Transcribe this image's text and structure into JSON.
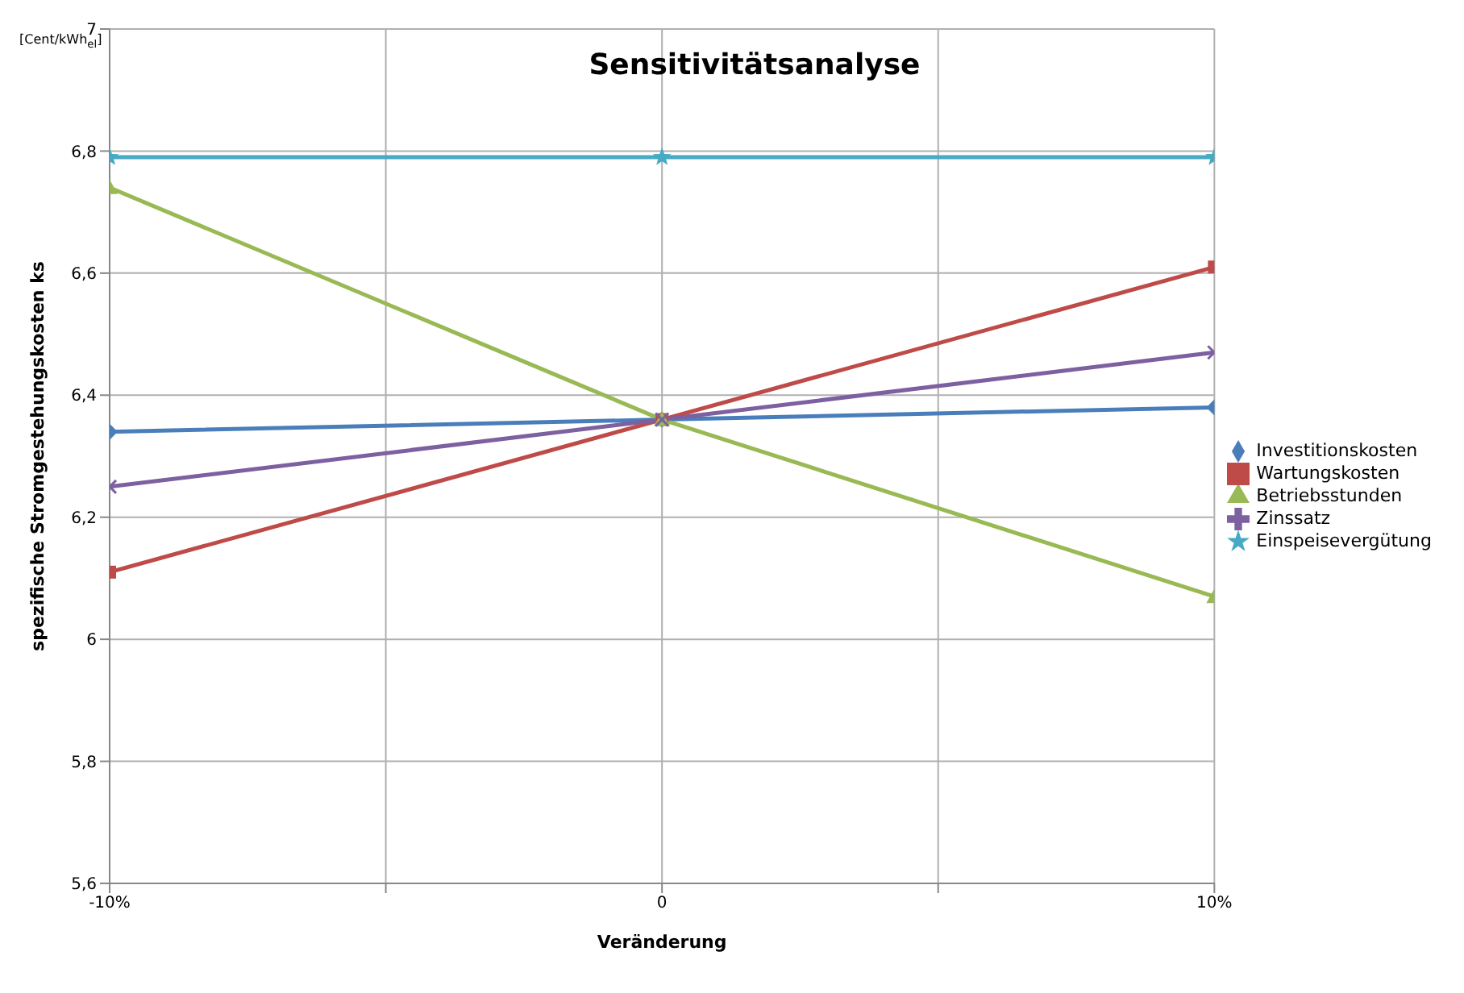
{
  "chart_data": {
    "type": "line",
    "title": "Sensitivitätsanalyse",
    "xlabel": "Veränderung",
    "ylabel": "spezifische Stromgestehungskosten ks",
    "annotations": [
      "[Cent/kWh$_{el}$]"
    ],
    "x": [
      -10,
      0,
      10
    ],
    "series": [
      {
        "name": "Investitionskosten",
        "color": "#4a7ebb",
        "marker": "diamond",
        "values": [
          6.34,
          6.36,
          6.38
        ]
      },
      {
        "name": "Wartungskosten",
        "color": "#be4b48",
        "marker": "square",
        "values": [
          6.11,
          6.36,
          6.61
        ]
      },
      {
        "name": "Betriebsstunden",
        "color": "#98b954",
        "marker": "triangle",
        "values": [
          6.74,
          6.36,
          6.07
        ]
      },
      {
        "name": "Zinssatz",
        "color": "#7d60a0",
        "marker": "cross",
        "values": [
          6.25,
          6.36,
          6.47
        ]
      },
      {
        "name": "Einspeisevergütung",
        "color": "#46aac5",
        "marker": "star",
        "values": [
          6.79,
          6.79,
          6.79
        ]
      }
    ],
    "xlim": [
      -10,
      10
    ],
    "xticks": [
      {
        "value": -10,
        "label": "-10%"
      },
      {
        "value": -5,
        "label": null
      },
      0,
      {
        "value": 5,
        "label": null
      },
      {
        "value": 10,
        "label": "10%"
      }
    ],
    "ylim": [
      5.6,
      7
    ],
    "yticks": [
      {
        "value": 5.6,
        "label": "5,6"
      },
      {
        "value": 5.8,
        "label": "5,8"
      },
      6,
      {
        "value": 6.2,
        "label": "6,2"
      },
      {
        "value": 6.4,
        "label": "6,4"
      },
      {
        "value": 6.6,
        "label": "6,6"
      },
      {
        "value": 6.8,
        "label": "6,8"
      },
      7
    ],
    "grid": true,
    "legend": "right"
  }
}
